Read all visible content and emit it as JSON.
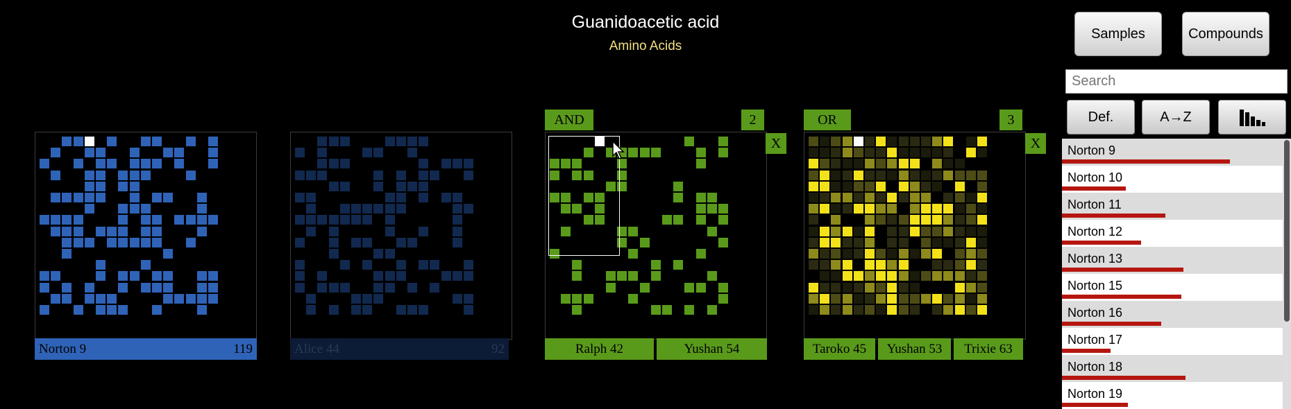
{
  "header": {
    "title": "Guanidoacetic acid",
    "subtitle": "Amino Acids"
  },
  "top_buttons": {
    "samples": "Samples",
    "compounds": "Compounds"
  },
  "search": {
    "placeholder": "Search"
  },
  "sort_buttons": {
    "default": "Def.",
    "alpha": "A→Z",
    "bars_icon": "bar-chart-icon"
  },
  "colors": {
    "blue": "#2f63b7",
    "dark_blue": "#0c1b36",
    "green": "#5a9a1b",
    "yellow": "#f3e21a",
    "red_bar": "#b5160f"
  },
  "panels": [
    {
      "name": "Norton 9",
      "count": "119"
    },
    {
      "name": "Alice 44",
      "count": "92"
    },
    {
      "op": "AND",
      "count": "2",
      "close": "X",
      "samples": [
        "Ralph 42",
        "Yushan 54"
      ]
    },
    {
      "op": "OR",
      "count": "3",
      "close": "X",
      "samples": [
        "Taroko 45",
        "Yushan 53",
        "Trixie 63"
      ]
    }
  ],
  "list": [
    {
      "label": "Norton 9",
      "value": 0.76
    },
    {
      "label": "Norton 10",
      "value": 0.29
    },
    {
      "label": "Norton 11",
      "value": 0.47
    },
    {
      "label": "Norton 12",
      "value": 0.36
    },
    {
      "label": "Norton 13",
      "value": 0.55
    },
    {
      "label": "Norton 15",
      "value": 0.54
    },
    {
      "label": "Norton 16",
      "value": 0.45
    },
    {
      "label": "Norton 17",
      "value": 0.22
    },
    {
      "label": "Norton 18",
      "value": 0.56
    },
    {
      "label": "Norton 19",
      "value": 0.3
    }
  ]
}
